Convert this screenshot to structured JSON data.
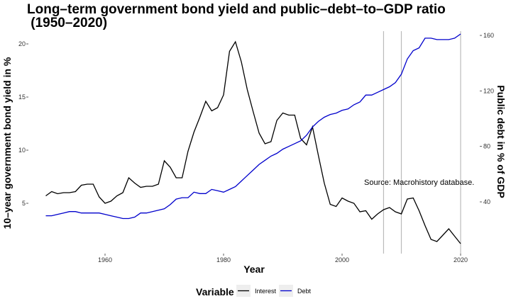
{
  "chart_data": {
    "type": "line",
    "title_line1": "Long–term government bond yield and public–debt–to–GDP ratio",
    "title_line2": " (1950–2020)",
    "xlabel": "Year",
    "ylabel_left": "10–year government bond yield in %",
    "ylabel_right": "Public debt in % of GDP",
    "xlim": [
      1950,
      2020
    ],
    "ylim_left": [
      0,
      21
    ],
    "ylim_right": [
      10,
      163
    ],
    "x_ticks": [
      1960,
      1980,
      2000,
      2020
    ],
    "y_left_ticks": [
      "5",
      "10",
      "15",
      "20"
    ],
    "y_right_ticks": [
      "40",
      "80",
      "120",
      "160"
    ],
    "vlines": [
      2007,
      2010,
      2020
    ],
    "annotation": "Source: Macrohistory database.",
    "legend": {
      "title": "Variable",
      "entries": [
        "Interest",
        "Debt"
      ]
    },
    "colors": {
      "Interest": "#000000",
      "Debt": "#0000cc",
      "vline": "#bbbbbb"
    },
    "series": [
      {
        "name": "Interest",
        "axis": "left",
        "x": [
          1950,
          1951,
          1952,
          1953,
          1954,
          1955,
          1956,
          1957,
          1958,
          1959,
          1960,
          1961,
          1962,
          1963,
          1964,
          1965,
          1966,
          1967,
          1968,
          1969,
          1970,
          1971,
          1972,
          1973,
          1974,
          1975,
          1976,
          1977,
          1978,
          1979,
          1980,
          1981,
          1982,
          1983,
          1984,
          1985,
          1986,
          1987,
          1988,
          1989,
          1990,
          1991,
          1992,
          1993,
          1994,
          1995,
          1996,
          1997,
          1998,
          1999,
          2000,
          2001,
          2002,
          2003,
          2004,
          2005,
          2006,
          2007,
          2008,
          2009,
          2010,
          2011,
          2012,
          2013,
          2014,
          2015,
          2016,
          2017,
          2018,
          2019,
          2020
        ],
        "values": [
          5.7,
          6.1,
          5.9,
          6.0,
          6.0,
          6.1,
          6.7,
          6.8,
          6.8,
          5.6,
          5.0,
          5.2,
          5.7,
          6.0,
          7.4,
          6.9,
          6.5,
          6.6,
          6.6,
          6.8,
          9.0,
          8.4,
          7.4,
          7.4,
          9.9,
          11.7,
          13.1,
          14.6,
          13.7,
          14.0,
          15.2,
          19.3,
          20.2,
          18.3,
          15.7,
          13.6,
          11.6,
          10.6,
          10.8,
          12.8,
          13.5,
          13.3,
          13.3,
          11.1,
          10.5,
          12.2,
          9.5,
          6.9,
          4.9,
          4.7,
          5.5,
          5.2,
          5.0,
          4.2,
          4.3,
          3.5,
          4.0,
          4.4,
          4.6,
          4.2,
          4.0,
          5.4,
          5.5,
          4.3,
          2.9,
          1.6,
          1.4,
          2.0,
          2.6,
          1.9,
          1.2
        ]
      },
      {
        "name": "Debt",
        "axis": "right",
        "x": [
          1950,
          1951,
          1952,
          1953,
          1954,
          1955,
          1956,
          1957,
          1958,
          1959,
          1960,
          1961,
          1962,
          1963,
          1964,
          1965,
          1966,
          1967,
          1968,
          1969,
          1970,
          1971,
          1972,
          1973,
          1974,
          1975,
          1976,
          1977,
          1978,
          1979,
          1980,
          1981,
          1982,
          1983,
          1984,
          1985,
          1986,
          1987,
          1988,
          1989,
          1990,
          1991,
          1992,
          1993,
          1994,
          1995,
          1996,
          1997,
          1998,
          1999,
          2000,
          2001,
          2002,
          2003,
          2004,
          2005,
          2006,
          2007,
          2008,
          2009,
          2010,
          2011,
          2012,
          2013,
          2014,
          2015,
          2016,
          2017,
          2018,
          2019,
          2020
        ],
        "values": [
          30,
          30,
          31,
          32,
          33,
          33,
          32,
          32,
          32,
          32,
          31,
          30,
          29,
          28,
          28,
          29,
          32,
          32,
          33,
          34,
          35,
          38,
          42,
          43,
          43,
          47,
          46,
          46,
          49,
          48,
          47,
          49,
          51,
          55,
          59,
          63,
          67,
          70,
          73,
          75,
          78,
          80,
          82,
          84,
          88,
          94,
          98,
          101,
          103,
          104,
          106,
          107,
          110,
          112,
          117,
          117,
          119,
          121,
          123,
          126,
          132,
          143,
          149,
          151,
          158,
          158,
          157,
          157,
          157,
          158,
          161
        ]
      }
    ]
  }
}
